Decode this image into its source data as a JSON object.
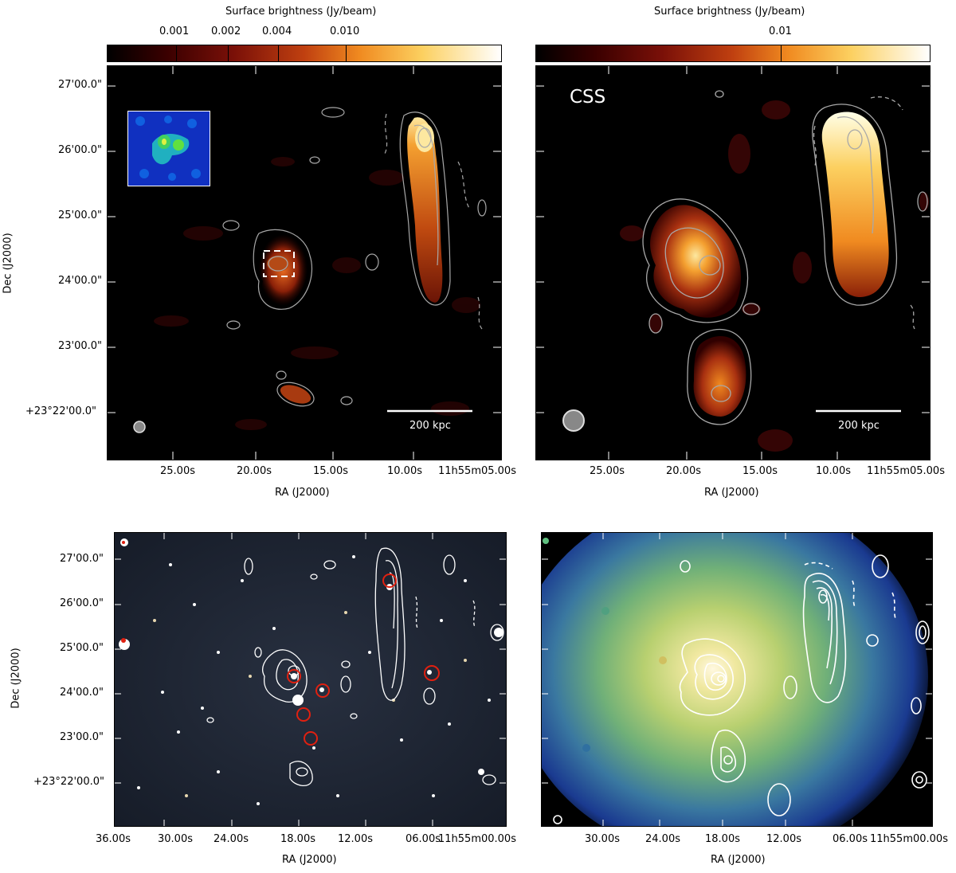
{
  "panels": {
    "top_left": {
      "colorbar_title": "Surface brightness (Jy/beam)",
      "colorbar_ticks": [
        "0.001",
        "0.002",
        "0.004",
        "0.010"
      ],
      "scalebar_label": "200 kpc",
      "y_ticks": [
        "27'00.0\"",
        "26'00.0\"",
        "25'00.0\"",
        "24'00.0\"",
        "23'00.0\"",
        "+23°22'00.0\""
      ],
      "x_ticks": [
        "25.00s",
        "20.00s",
        "15.00s",
        "10.00s",
        "11h55m05.00s"
      ],
      "xlabel": "RA (J2000)",
      "ylabel": "Dec (J2000)"
    },
    "top_right": {
      "colorbar_title": "Surface brightness (Jy/beam)",
      "colorbar_ticks": [
        "0.01"
      ],
      "panel_label": "CSS",
      "scalebar_label": "200 kpc",
      "x_ticks": [
        "25.00s",
        "20.00s",
        "15.00s",
        "10.00s",
        "11h55m05.00s"
      ],
      "xlabel": "RA (J2000)"
    },
    "bottom_left": {
      "y_ticks": [
        "27'00.0\"",
        "26'00.0\"",
        "25'00.0\"",
        "24'00.0\"",
        "23'00.0\"",
        "+23°22'00.0\""
      ],
      "x_ticks": [
        "36.00s",
        "30.00s",
        "24.00s",
        "18.00s",
        "12.00s",
        "06.00s",
        "11h55m00.00s"
      ],
      "xlabel": "RA (J2000)",
      "ylabel": "Dec (J2000)"
    },
    "bottom_right": {
      "x_ticks": [
        "30.00s",
        "24.00s",
        "18.00s",
        "12.00s",
        "06.00s",
        "11h55m00.00s"
      ],
      "xlabel": "RA (J2000)"
    }
  },
  "colors": {
    "background_dark": "#000000",
    "contour_grey": "#a8a8a8",
    "contour_white": "#ffffff",
    "galaxy_marker": "#e02010",
    "cutout_box": "#ffffff"
  },
  "icons": {
    "beam_marker": "beam-ellipse-icon",
    "galaxy_marker": "red-circle-icon"
  }
}
